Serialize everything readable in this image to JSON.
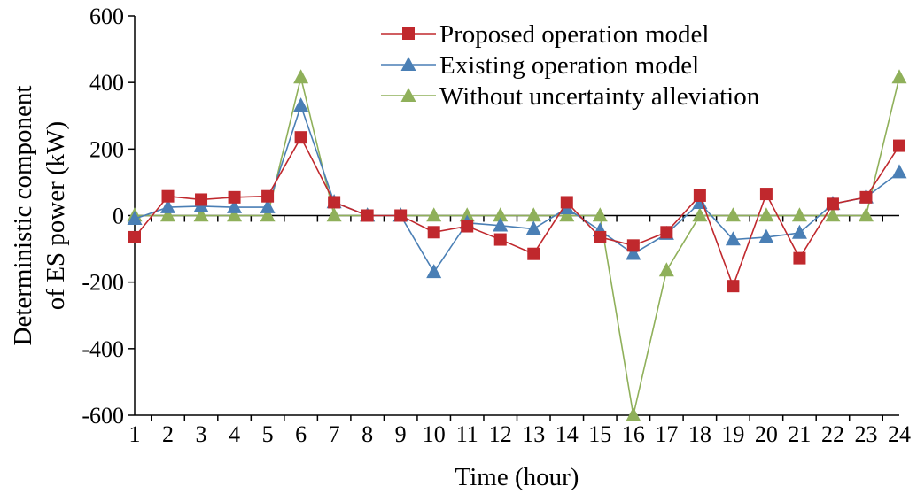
{
  "chart_data": {
    "type": "line",
    "title": "",
    "xlabel": "Time (hour)",
    "ylabel": [
      "Deterministic component",
      "of ES power (kW)"
    ],
    "x": [
      1,
      2,
      3,
      4,
      5,
      6,
      7,
      8,
      9,
      10,
      11,
      12,
      13,
      14,
      15,
      16,
      17,
      18,
      19,
      20,
      21,
      22,
      23,
      24
    ],
    "ylim": [
      -600,
      600
    ],
    "yticks": [
      -600,
      -400,
      -200,
      0,
      200,
      400,
      600
    ],
    "grid": false,
    "legend_position": "top-right",
    "series": [
      {
        "name": "Proposed operation model",
        "color": "#c0282d",
        "marker": "square",
        "values": [
          -65,
          58,
          48,
          55,
          58,
          235,
          40,
          0,
          0,
          -50,
          -32,
          -72,
          -115,
          40,
          -65,
          -90,
          -50,
          60,
          -212,
          65,
          -128,
          35,
          55,
          210
        ]
      },
      {
        "name": "Existing operation model",
        "color": "#4a7fb5",
        "marker": "triangle",
        "values": [
          -10,
          25,
          28,
          25,
          25,
          330,
          40,
          0,
          0,
          -170,
          -22,
          -30,
          -40,
          22,
          -45,
          -115,
          -55,
          38,
          -72,
          -65,
          -52,
          35,
          55,
          130
        ]
      },
      {
        "name": "Without uncertainty alleviation",
        "color": "#8fb05a",
        "marker": "triangle",
        "values": [
          0,
          0,
          0,
          0,
          0,
          415,
          0,
          0,
          0,
          0,
          0,
          0,
          0,
          0,
          0,
          -600,
          -165,
          0,
          0,
          0,
          0,
          0,
          0,
          415
        ]
      }
    ]
  }
}
